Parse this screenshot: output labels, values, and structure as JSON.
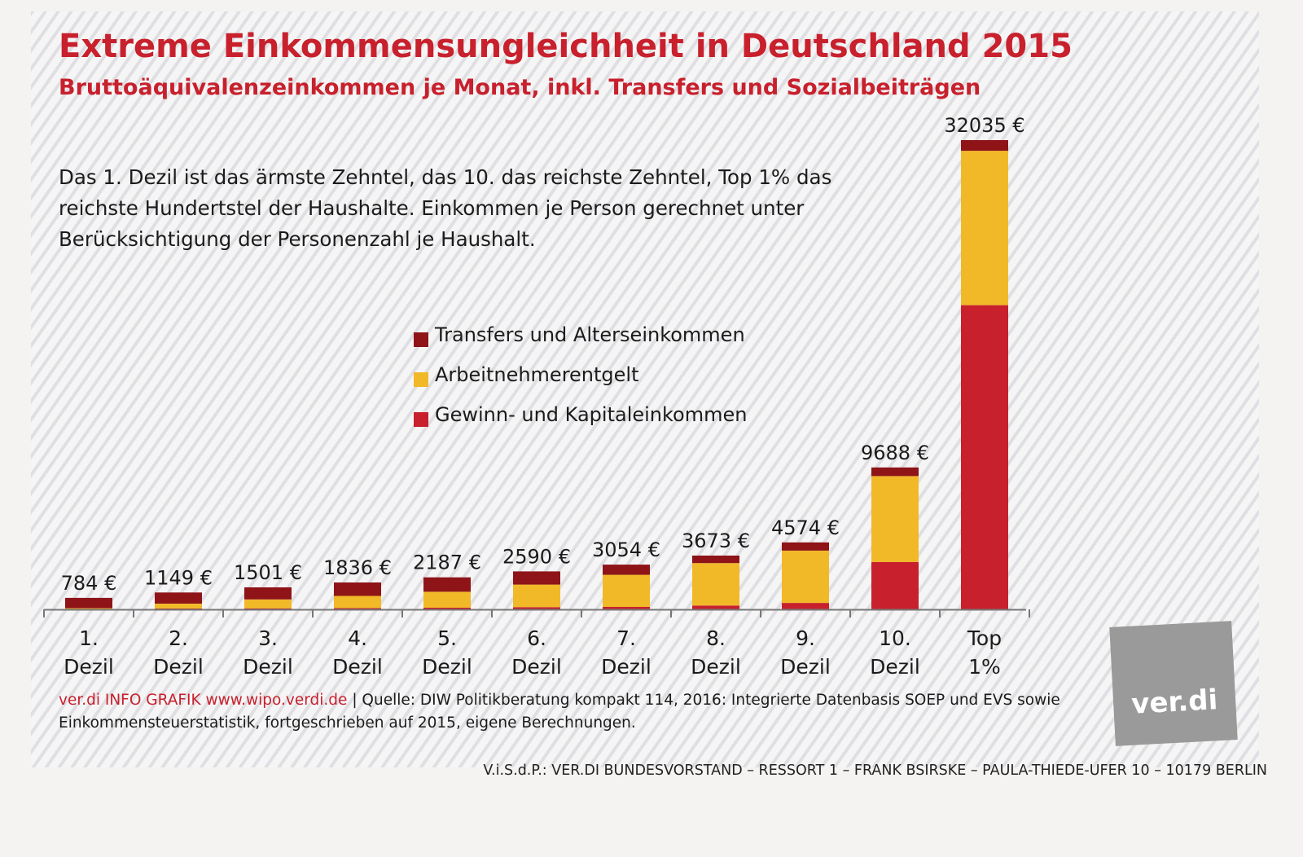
{
  "colors": {
    "transfers": "#8e1418",
    "arbeitnehmer": "#f1b928",
    "gewinn": "#c8202c",
    "title": "#c8202c",
    "axis": "#777777"
  },
  "header": {
    "title": "Extreme Einkommensungleichheit in Deutschland 2015",
    "subtitle": "Bruttoäquivalenzeinkommen je Monat, inkl. Transfers und Sozialbeiträgen"
  },
  "description": "Das 1. Dezil ist das ärmste Zehntel, das 10. das reichste Zehntel, Top 1% das reichste Hundertstel der Haushalte. Einkommen je Person gerechnet unter Berücksichtigung der Personenzahl je Haushalt.",
  "legend": [
    {
      "label": "Transfers und Alterseinkommen",
      "color": "#8e1418"
    },
    {
      "label": "Arbeitnehmerentgelt",
      "color": "#f1b928"
    },
    {
      "label": "Gewinn- und Kapitaleinkommen",
      "color": "#c8202c"
    }
  ],
  "chart_data": {
    "type": "bar",
    "stacked": true,
    "title": "Extreme Einkommensungleichheit in Deutschland 2015",
    "subtitle": "Bruttoäquivalenzeinkommen je Monat, inkl. Transfers und Sozialbeiträgen",
    "xlabel": "",
    "ylabel": "",
    "grid": false,
    "ylim": [
      0,
      32035
    ],
    "categories": [
      "1. Dezil",
      "2. Dezil",
      "3. Dezil",
      "4. Dezil",
      "5. Dezil",
      "6. Dezil",
      "7. Dezil",
      "8. Dezil",
      "9. Dezil",
      "10. Dezil",
      "Top 1%"
    ],
    "category_lines": [
      [
        "1.",
        "Dezil"
      ],
      [
        "2.",
        "Dezil"
      ],
      [
        "3.",
        "Dezil"
      ],
      [
        "4.",
        "Dezil"
      ],
      [
        "5.",
        "Dezil"
      ],
      [
        "6.",
        "Dezil"
      ],
      [
        "7.",
        "Dezil"
      ],
      [
        "8.",
        "Dezil"
      ],
      [
        "9.",
        "Dezil"
      ],
      [
        "10.",
        "Dezil"
      ],
      [
        "Top",
        "1%"
      ]
    ],
    "totals": [
      784,
      1149,
      1501,
      1836,
      2187,
      2590,
      3054,
      3673,
      4574,
      9688,
      32035
    ],
    "total_labels": [
      "784 €",
      "1149 €",
      "1501 €",
      "1836 €",
      "2187 €",
      "2590 €",
      "3054 €",
      "3673 €",
      "4574 €",
      "9688 €",
      "32035 €"
    ],
    "series": [
      {
        "name": "Gewinn- und Kapitaleinkommen",
        "values": [
          30,
          55,
          70,
          90,
          110,
          150,
          170,
          260,
          440,
          3230,
          20765
        ]
      },
      {
        "name": "Arbeitnehmerentgelt",
        "values": [
          50,
          330,
          610,
          830,
          1090,
          1540,
          2190,
          2900,
          3570,
          5870,
          10540
        ]
      },
      {
        "name": "Transfers und Alterseinkommen",
        "values": [
          704,
          764,
          821,
          916,
          987,
          900,
          694,
          513,
          564,
          588,
          730
        ]
      }
    ],
    "legend_position": "center"
  },
  "footer": {
    "source_brand": "ver.di INFO GRAFIK www.wipo.verdi.de",
    "source_text": " | Quelle: DIW Politikberatung kompakt 114, 2016: Integrierte Datenbasis SOEP und EVS sowie Einkommensteuerstatistik, fortgeschrieben auf 2015, eigene Berechnungen.",
    "logo_text": "ver.di",
    "imprint": "V.i.S.d.P.: VER.DI BUNDESVORSTAND – RESSORT 1 – FRANK BSIRSKE – PAULA-THIEDE-UFER 10 – 10179 BERLIN"
  }
}
